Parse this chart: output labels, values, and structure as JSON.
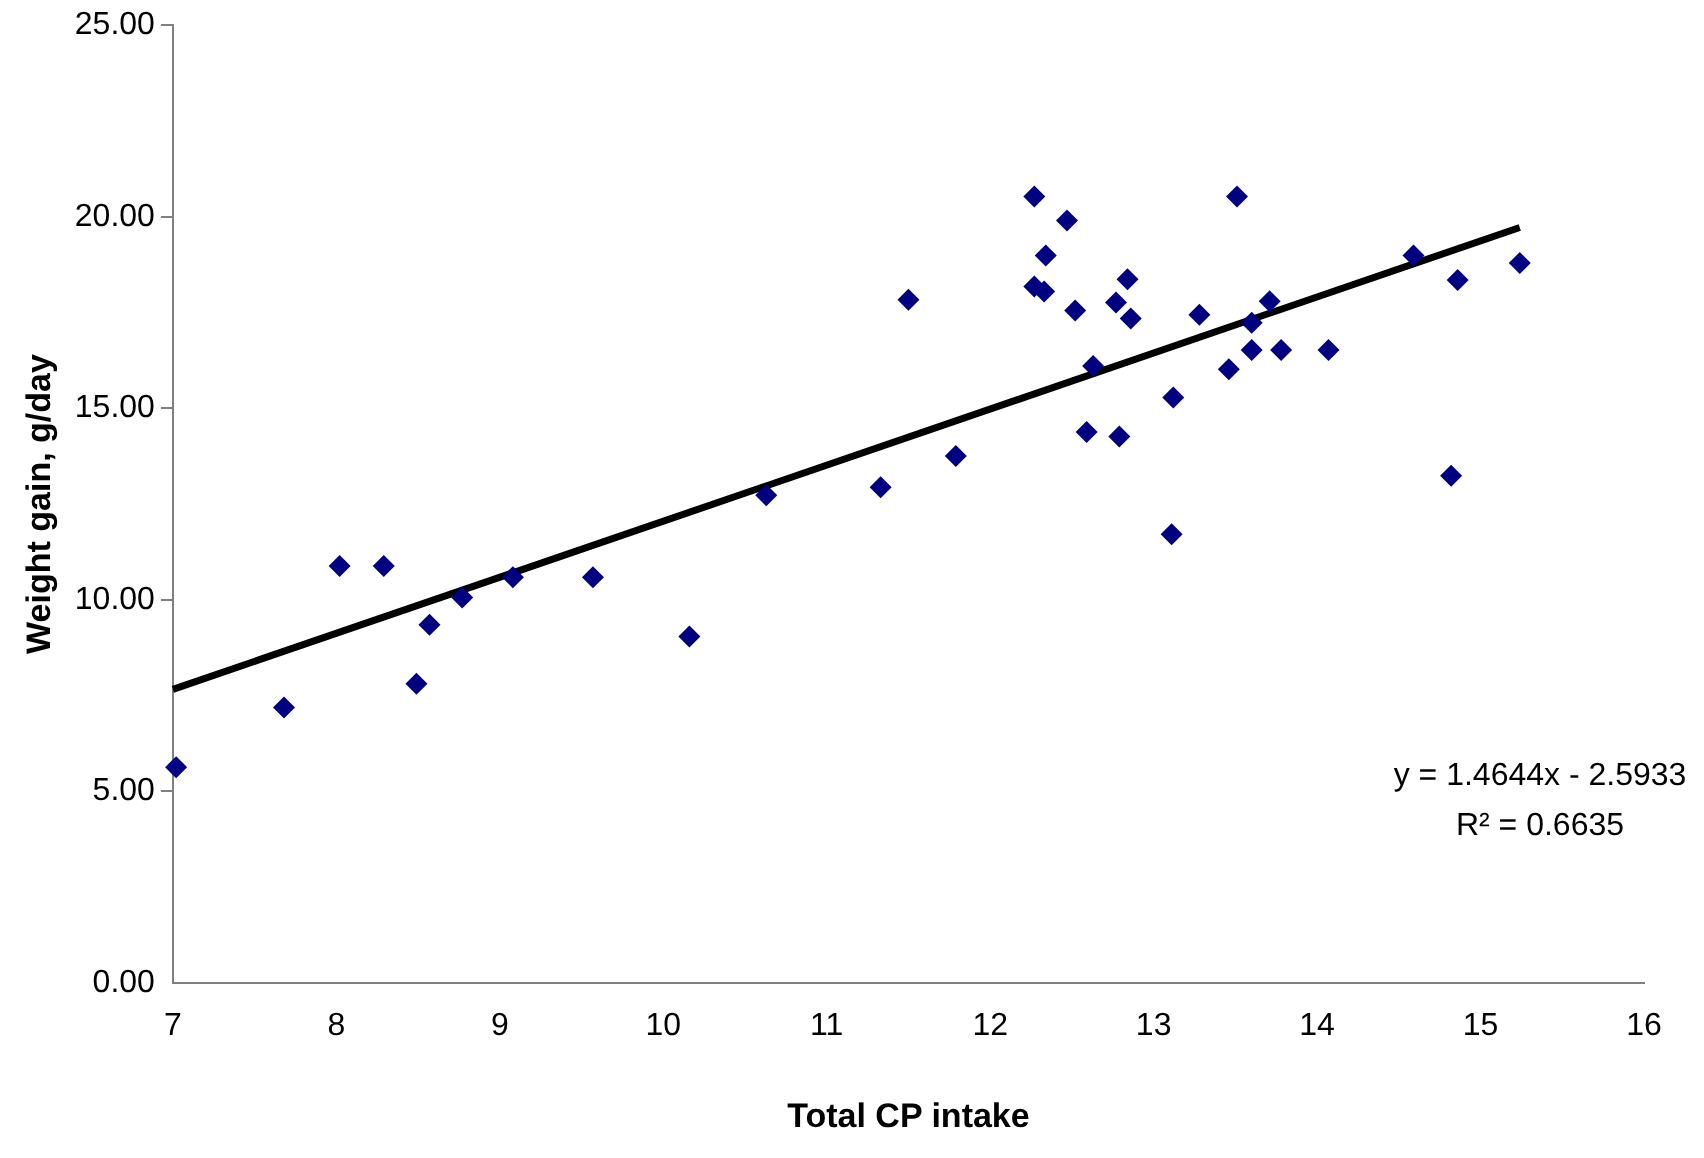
{
  "chart_data": {
    "type": "scatter",
    "xlabel": "Total CP intake",
    "ylabel": "Weight gain, g/day",
    "xlim": [
      7,
      16
    ],
    "xticks": [
      7,
      8,
      9,
      10,
      11,
      12,
      13,
      14,
      15,
      16
    ],
    "ylim": [
      0,
      25
    ],
    "yticks": [
      {
        "value": 0,
        "label": "0.00"
      },
      {
        "value": 5,
        "label": "5.00"
      },
      {
        "value": 10,
        "label": "10.00"
      },
      {
        "value": 15,
        "label": "15.00"
      },
      {
        "value": 20,
        "label": "20.00"
      },
      {
        "value": 25,
        "label": "25.00"
      }
    ],
    "grid": false,
    "legend": false,
    "marker": "diamond",
    "annotations": [
      "y = 1.4644x - 2.5933",
      "R² = 0.6635"
    ],
    "series": [
      {
        "color": "#000080",
        "x": [
          7.02,
          7.68,
          8.02,
          8.29,
          8.49,
          8.57,
          8.77,
          9.08,
          9.57,
          10.16,
          10.63,
          11.33,
          11.5,
          11.79,
          12.27,
          12.47,
          12.34,
          12.27,
          12.33,
          12.52,
          12.84,
          12.77,
          12.86,
          12.63,
          12.59,
          12.79,
          13.12,
          13.11,
          13.28,
          13.51,
          13.46,
          13.6,
          13.6,
          13.71,
          13.78,
          14.07,
          14.59,
          14.82,
          14.86,
          15.24
        ],
        "values": [
          5.63,
          7.19,
          10.88,
          10.88,
          7.81,
          9.35,
          10.06,
          10.59,
          10.59,
          9.04,
          12.73,
          12.94,
          17.83,
          13.75,
          20.53,
          19.9,
          18.99,
          18.18,
          18.05,
          17.55,
          18.37,
          17.76,
          17.34,
          16.1,
          14.38,
          14.26,
          15.28,
          11.71,
          17.44,
          20.53,
          16.02,
          16.52,
          17.23,
          17.79,
          16.52,
          16.52,
          18.99,
          13.24,
          18.35,
          18.79
        ]
      },
      {
        "type": "line",
        "color": "#000000",
        "x": [
          7,
          15.24
        ],
        "values": [
          7.66,
          19.72
        ],
        "marker": "none",
        "line_style": "solid"
      }
    ]
  }
}
